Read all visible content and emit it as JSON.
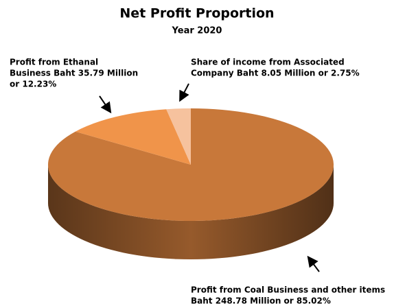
{
  "chart_data": {
    "type": "pie",
    "title": "Net Profit Proportion",
    "subtitle": "Year 2020",
    "categories": [
      [
        "Profit from Coal Business and other items",
        "Baht 248.78 Million  or 85.02%"
      ],
      [
        "Profit from Ethanal",
        "Business Baht 35.79 Million",
        "or 12.23%"
      ],
      [
        "Share of income from Associated",
        "Company Baht 8.05 Million  or 2.75%"
      ]
    ],
    "values": [
      85.02,
      12.23,
      2.75
    ],
    "colors": [
      "#c8783a",
      "#f0944a",
      "#f6c29e"
    ]
  }
}
